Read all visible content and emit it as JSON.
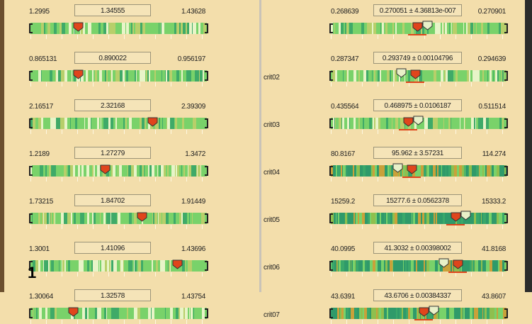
{
  "overlay_label": "1",
  "colors": {
    "background": "#f3deab",
    "strip_green": "#79d26a",
    "strip_dark": "#2f9a6a",
    "marker_red": "#e0451c",
    "marker_open": "#e8f0c8",
    "underline": "#e0451c"
  },
  "left_rows": [
    {
      "lo": "1.2995",
      "val": "1.34555",
      "hi": "1.43628",
      "marker": 0.27
    },
    {
      "lo": "0.865131",
      "val": "0.890022",
      "hi": "0.956197",
      "marker": 0.27
    },
    {
      "lo": "2.16517",
      "val": "2.32168",
      "hi": "2.39309",
      "marker": 0.69
    },
    {
      "lo": "1.2189",
      "val": "1.27279",
      "hi": "1.3472",
      "marker": 0.42
    },
    {
      "lo": "1.73215",
      "val": "1.84702",
      "hi": "1.91449",
      "marker": 0.63
    },
    {
      "lo": "1.3001",
      "val": "1.41096",
      "hi": "1.43696",
      "marker": 0.83
    },
    {
      "lo": "1.30064",
      "val": "1.32578",
      "hi": "1.43754",
      "marker": 0.24
    }
  ],
  "right_rows": [
    {
      "label": "",
      "lo": "0.268639",
      "val": "0.270051 ± 4.36813e-007",
      "hi": "0.270901",
      "marker": 0.49
    },
    {
      "label": "crit02",
      "lo": "0.287347",
      "val": "0.293749 ± 0.00104796",
      "hi": "0.294639",
      "marker": 0.48
    },
    {
      "label": "crit03",
      "lo": "0.435564",
      "val": "0.468975 ± 0.0106187",
      "hi": "0.511514",
      "marker": 0.44
    },
    {
      "label": "crit04",
      "lo": "80.8167",
      "val": "95.962 ± 3.57231",
      "hi": "114.274",
      "marker": 0.46
    },
    {
      "label": "crit05",
      "lo": "15259.2",
      "val": "15277.6 ± 0.0562378",
      "hi": "15333.2",
      "marker": 0.71
    },
    {
      "label": "crit06",
      "lo": "40.0995",
      "val": "41.3032 ± 0.00398002",
      "hi": "41.8168",
      "marker": 0.72
    },
    {
      "label": "crit07",
      "lo": "43.6391",
      "val": "43.6706 ± 0.00384337",
      "hi": "43.8607",
      "marker": 0.53
    }
  ]
}
